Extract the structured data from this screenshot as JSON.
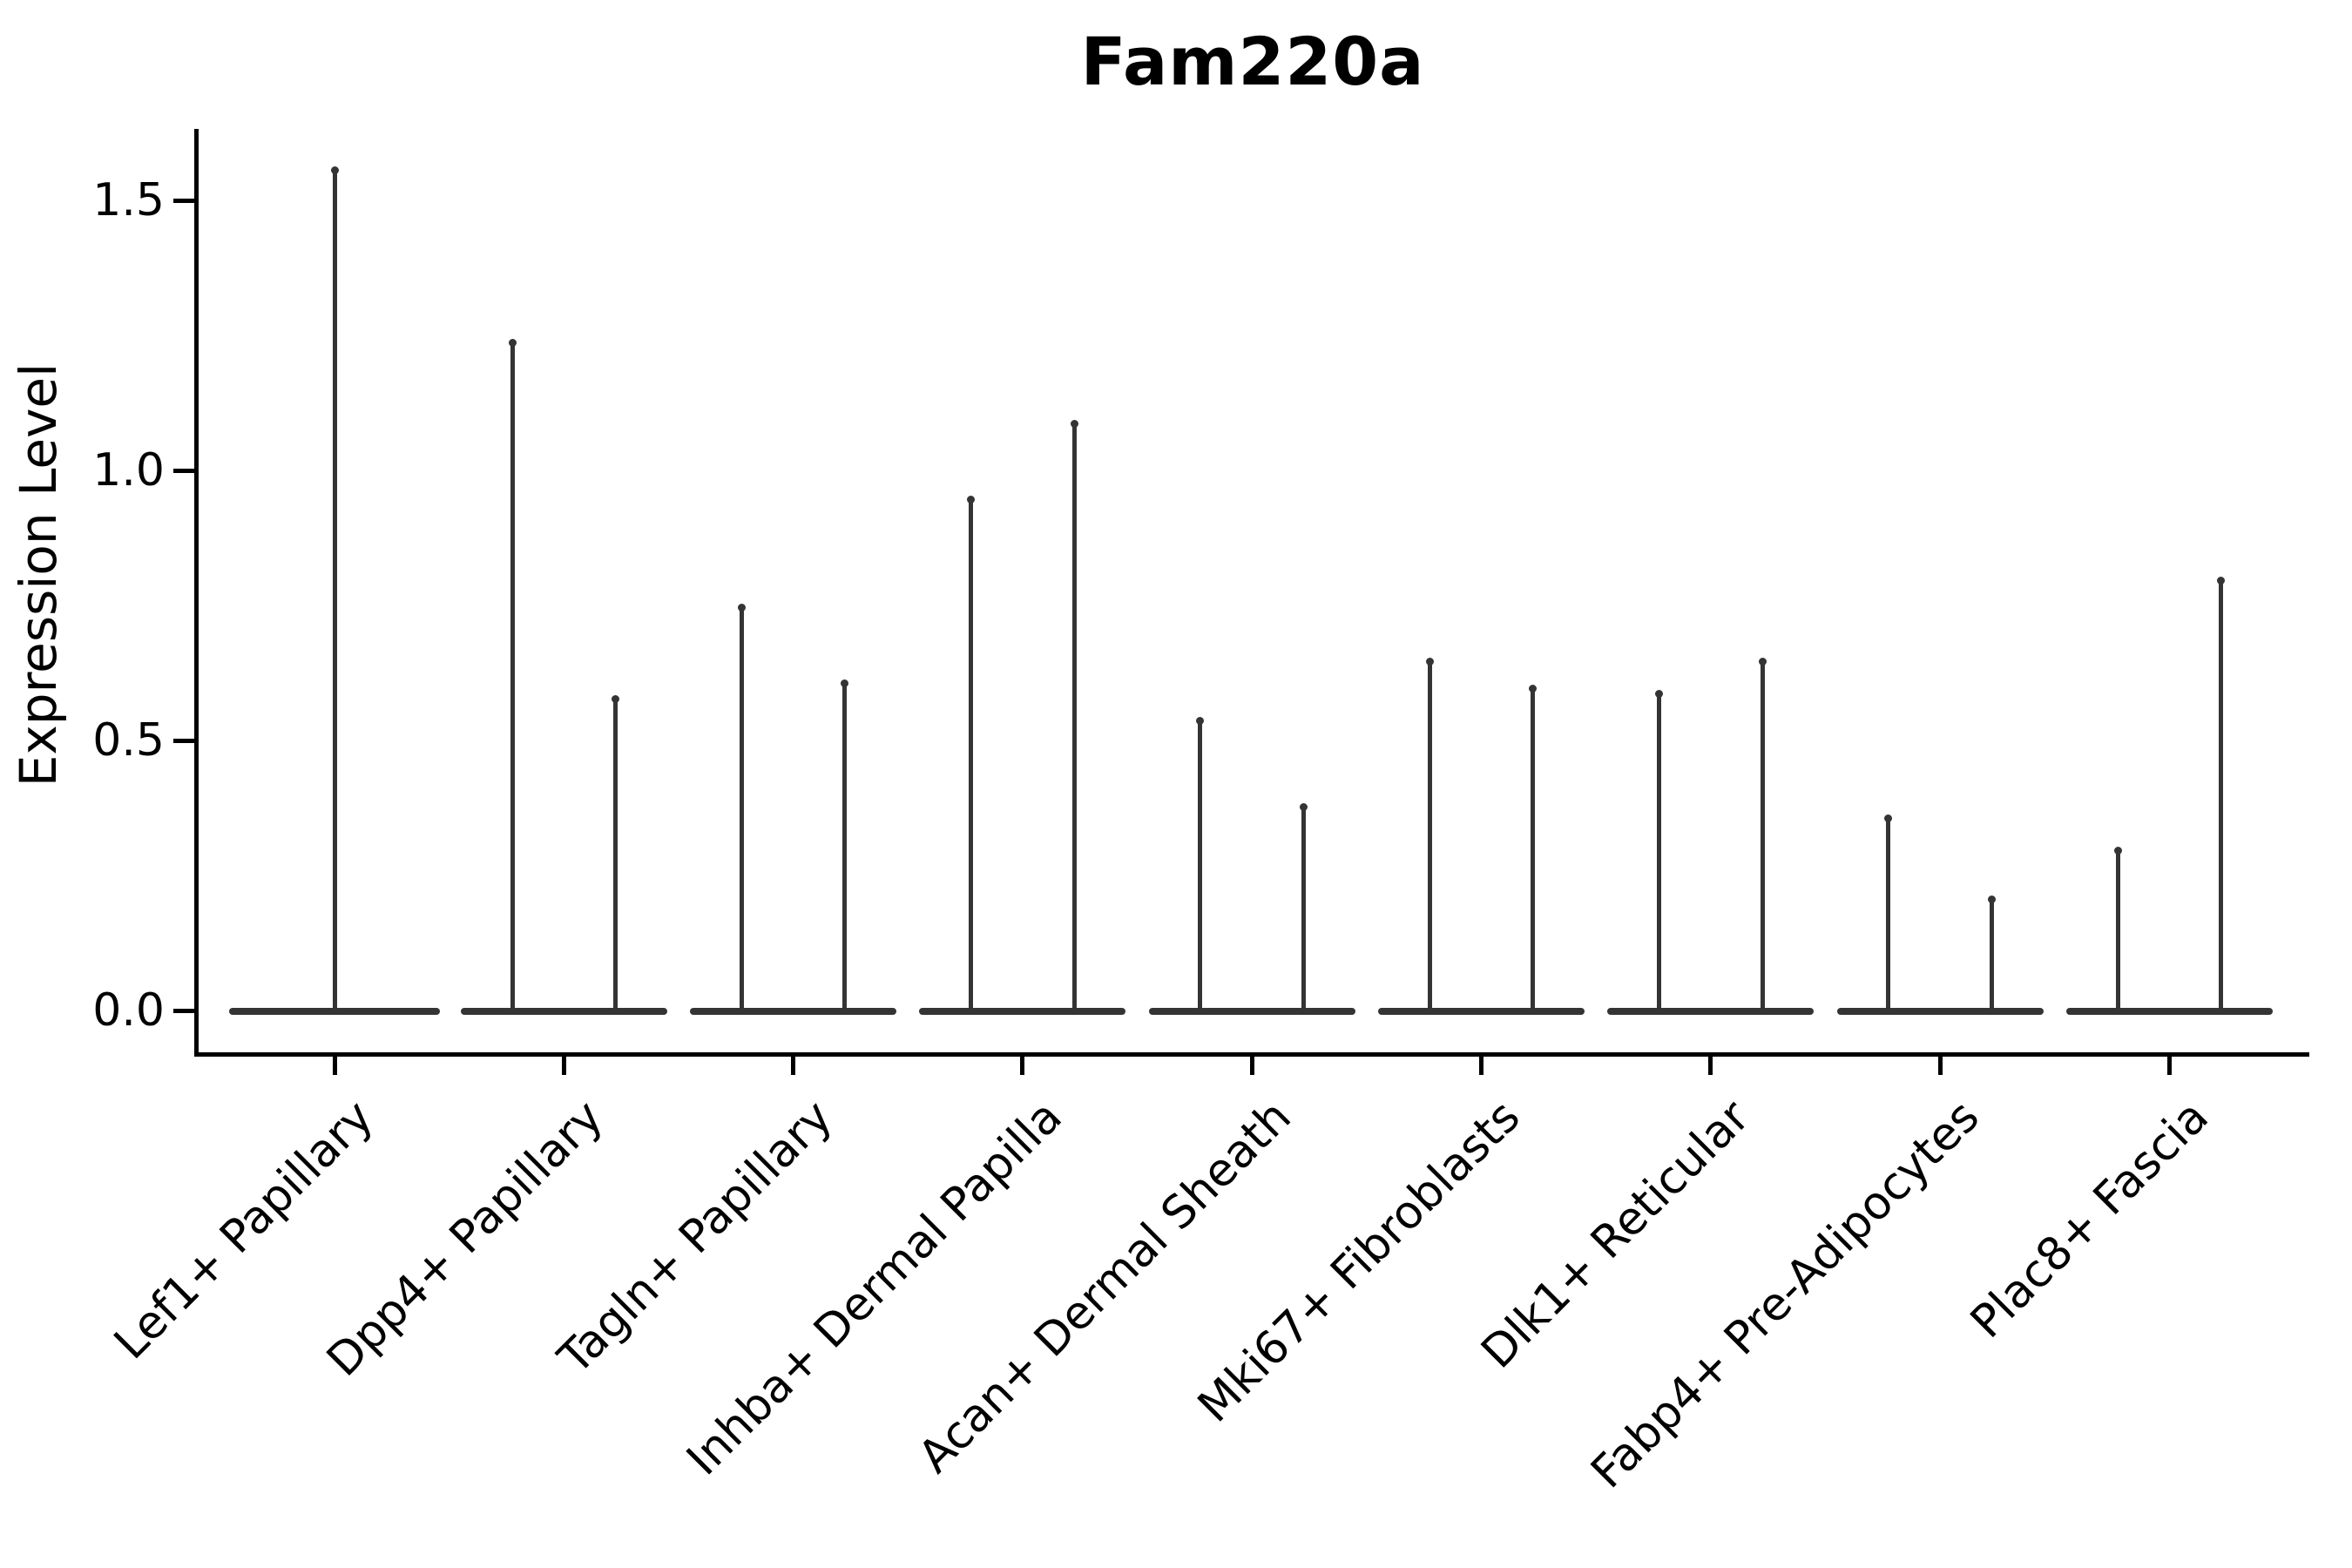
{
  "figure": {
    "background": "#ffffff",
    "text_color": "#000000",
    "violin_color": "#343434"
  },
  "chart_data": {
    "type": "violin",
    "title": "Fam220a",
    "xlabel": "",
    "ylabel": "Expression Level",
    "ylim": [
      -0.08,
      1.63
    ],
    "grid": false,
    "legend": null,
    "ytick_values": [
      0.0,
      0.5,
      1.0,
      1.5
    ],
    "ytick_labels": [
      "0.0",
      "0.5",
      "1.0",
      "1.5"
    ],
    "categories": [
      "Lef1+ Papillary",
      "Dpp4+ Papillary",
      "Tagln+ Papillary",
      "Inhba+ Dermal Papilla",
      "Acan+ Dermal Sheath",
      "Mki67+ Fibroblasts",
      "Dlk1+ Reticular",
      "Fabp4+ Pre-Adipocytes",
      "Plac8+ Fascia"
    ],
    "violin_description": "Each violin is a flat density mass at expression 0 with a thin spike reaching the maximum expression value; all categories except the first contain two side-by-side violins.",
    "violin_max_values": [
      [
        1.56
      ],
      [
        1.24,
        0.58
      ],
      [
        0.75,
        0.61
      ],
      [
        0.95,
        1.09
      ],
      [
        0.54,
        0.38
      ],
      [
        0.65,
        0.6
      ],
      [
        0.59,
        0.65
      ],
      [
        0.36,
        0.21
      ],
      [
        0.3,
        0.8
      ]
    ]
  }
}
